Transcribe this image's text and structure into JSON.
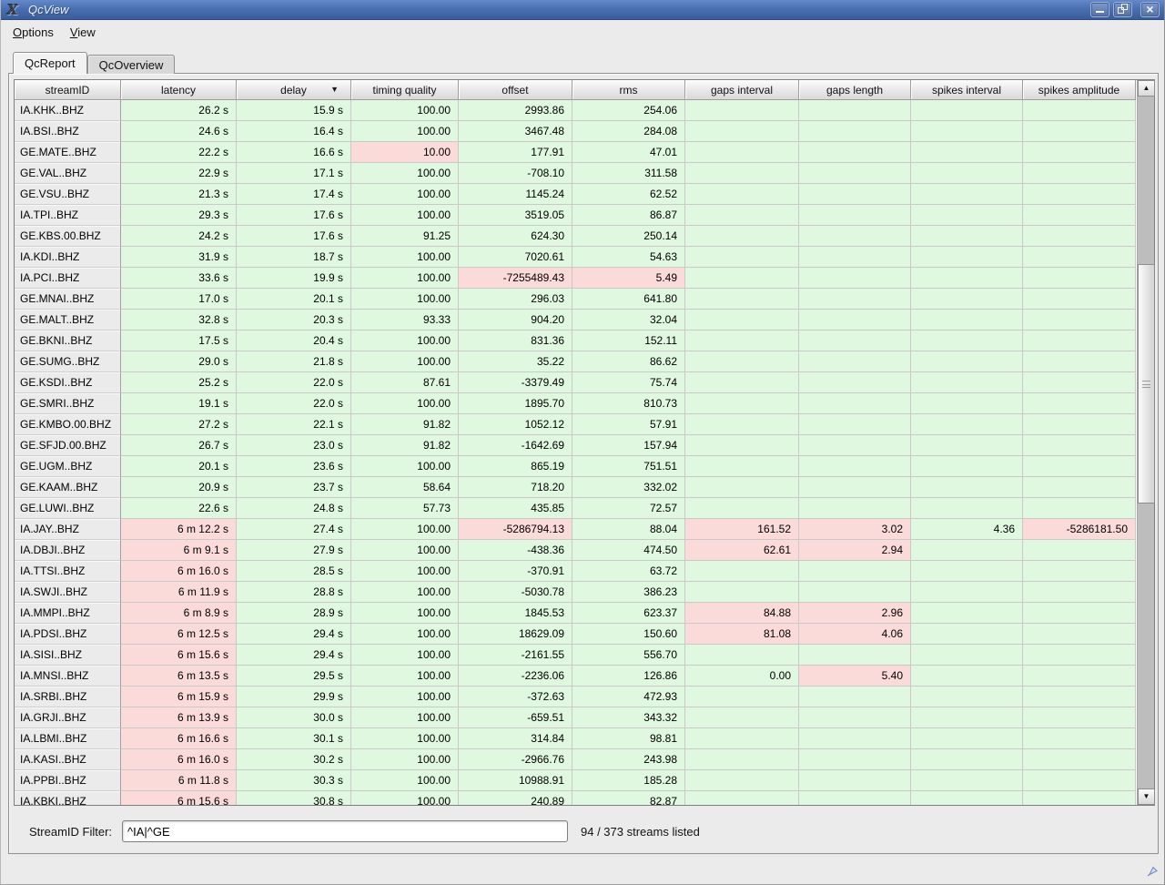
{
  "window": {
    "title": "QcView",
    "app_icon_glyph": "X",
    "controls": {
      "minimize": "minimize",
      "maximize": "maximize",
      "close_glyph": "×"
    }
  },
  "menubar": {
    "items": [
      {
        "label": "Options",
        "underline_index": 0
      },
      {
        "label": "View",
        "underline_index": 0
      }
    ]
  },
  "tabs": [
    {
      "label": "QcReport",
      "active": true
    },
    {
      "label": "QcOverview",
      "active": false
    }
  ],
  "table": {
    "columns": [
      "streamID",
      "latency",
      "delay",
      "timing quality",
      "offset",
      "rms",
      "gaps interval",
      "gaps length",
      "spikes interval",
      "spikes amplitude"
    ],
    "sort_column_index": 2,
    "sort_glyph": "▼",
    "scroll_up_glyph": "▲",
    "scroll_down_glyph": "▼",
    "rows": [
      {
        "cells": [
          "IA.KHK..BHZ",
          "26.2 s",
          "15.9 s",
          "100.00",
          "2993.86",
          "254.06",
          "",
          "",
          "",
          ""
        ],
        "alerts": []
      },
      {
        "cells": [
          "IA.BSI..BHZ",
          "24.6 s",
          "16.4 s",
          "100.00",
          "3467.48",
          "284.08",
          "",
          "",
          "",
          ""
        ],
        "alerts": []
      },
      {
        "cells": [
          "GE.MATE..BHZ",
          "22.2 s",
          "16.6 s",
          "10.00",
          "177.91",
          "47.01",
          "",
          "",
          "",
          ""
        ],
        "alerts": [
          3
        ]
      },
      {
        "cells": [
          "GE.VAL..BHZ",
          "22.9 s",
          "17.1 s",
          "100.00",
          "-708.10",
          "311.58",
          "",
          "",
          "",
          ""
        ],
        "alerts": []
      },
      {
        "cells": [
          "GE.VSU..BHZ",
          "21.3 s",
          "17.4 s",
          "100.00",
          "1145.24",
          "62.52",
          "",
          "",
          "",
          ""
        ],
        "alerts": []
      },
      {
        "cells": [
          "IA.TPI..BHZ",
          "29.3 s",
          "17.6 s",
          "100.00",
          "3519.05",
          "86.87",
          "",
          "",
          "",
          ""
        ],
        "alerts": []
      },
      {
        "cells": [
          "GE.KBS.00.BHZ",
          "24.2 s",
          "17.6 s",
          "91.25",
          "624.30",
          "250.14",
          "",
          "",
          "",
          ""
        ],
        "alerts": []
      },
      {
        "cells": [
          "IA.KDI..BHZ",
          "31.9 s",
          "18.7 s",
          "100.00",
          "7020.61",
          "54.63",
          "",
          "",
          "",
          ""
        ],
        "alerts": []
      },
      {
        "cells": [
          "IA.PCI..BHZ",
          "33.6 s",
          "19.9 s",
          "100.00",
          "-7255489.43",
          "5.49",
          "",
          "",
          "",
          ""
        ],
        "alerts": [
          4,
          5
        ]
      },
      {
        "cells": [
          "GE.MNAI..BHZ",
          "17.0 s",
          "20.1 s",
          "100.00",
          "296.03",
          "641.80",
          "",
          "",
          "",
          ""
        ],
        "alerts": []
      },
      {
        "cells": [
          "GE.MALT..BHZ",
          "32.8 s",
          "20.3 s",
          "93.33",
          "904.20",
          "32.04",
          "",
          "",
          "",
          ""
        ],
        "alerts": []
      },
      {
        "cells": [
          "GE.BKNI..BHZ",
          "17.5 s",
          "20.4 s",
          "100.00",
          "831.36",
          "152.11",
          "",
          "",
          "",
          ""
        ],
        "alerts": []
      },
      {
        "cells": [
          "GE.SUMG..BHZ",
          "29.0 s",
          "21.8 s",
          "100.00",
          "35.22",
          "86.62",
          "",
          "",
          "",
          ""
        ],
        "alerts": []
      },
      {
        "cells": [
          "GE.KSDI..BHZ",
          "25.2 s",
          "22.0 s",
          "87.61",
          "-3379.49",
          "75.74",
          "",
          "",
          "",
          ""
        ],
        "alerts": []
      },
      {
        "cells": [
          "GE.SMRI..BHZ",
          "19.1 s",
          "22.0 s",
          "100.00",
          "1895.70",
          "810.73",
          "",
          "",
          "",
          ""
        ],
        "alerts": []
      },
      {
        "cells": [
          "GE.KMBO.00.BHZ",
          "27.2 s",
          "22.1 s",
          "91.82",
          "1052.12",
          "57.91",
          "",
          "",
          "",
          ""
        ],
        "alerts": []
      },
      {
        "cells": [
          "GE.SFJD.00.BHZ",
          "26.7 s",
          "23.0 s",
          "91.82",
          "-1642.69",
          "157.94",
          "",
          "",
          "",
          ""
        ],
        "alerts": []
      },
      {
        "cells": [
          "GE.UGM..BHZ",
          "20.1 s",
          "23.6 s",
          "100.00",
          "865.19",
          "751.51",
          "",
          "",
          "",
          ""
        ],
        "alerts": []
      },
      {
        "cells": [
          "GE.KAAM..BHZ",
          "20.9 s",
          "23.7 s",
          "58.64",
          "718.20",
          "332.02",
          "",
          "",
          "",
          ""
        ],
        "alerts": []
      },
      {
        "cells": [
          "GE.LUWI..BHZ",
          "22.6 s",
          "24.8 s",
          "57.73",
          "435.85",
          "72.57",
          "",
          "",
          "",
          ""
        ],
        "alerts": []
      },
      {
        "cells": [
          "IA.JAY..BHZ",
          "6 m 12.2 s",
          "27.4 s",
          "100.00",
          "-5286794.13",
          "88.04",
          "161.52",
          "3.02",
          "4.36",
          "-5286181.50"
        ],
        "alerts": [
          1,
          4,
          6,
          7,
          9
        ]
      },
      {
        "cells": [
          "IA.DBJI..BHZ",
          "6 m 9.1 s",
          "27.9 s",
          "100.00",
          "-438.36",
          "474.50",
          "62.61",
          "2.94",
          "",
          ""
        ],
        "alerts": [
          1,
          6,
          7
        ]
      },
      {
        "cells": [
          "IA.TTSI..BHZ",
          "6 m 16.0 s",
          "28.5 s",
          "100.00",
          "-370.91",
          "63.72",
          "",
          "",
          "",
          ""
        ],
        "alerts": [
          1
        ]
      },
      {
        "cells": [
          "IA.SWJI..BHZ",
          "6 m 11.9 s",
          "28.8 s",
          "100.00",
          "-5030.78",
          "386.23",
          "",
          "",
          "",
          ""
        ],
        "alerts": [
          1
        ]
      },
      {
        "cells": [
          "IA.MMPI..BHZ",
          "6 m 8.9 s",
          "28.9 s",
          "100.00",
          "1845.53",
          "623.37",
          "84.88",
          "2.96",
          "",
          ""
        ],
        "alerts": [
          1,
          6,
          7
        ]
      },
      {
        "cells": [
          "IA.PDSI..BHZ",
          "6 m 12.5 s",
          "29.4 s",
          "100.00",
          "18629.09",
          "150.60",
          "81.08",
          "4.06",
          "",
          ""
        ],
        "alerts": [
          1,
          6,
          7
        ]
      },
      {
        "cells": [
          "IA.SISI..BHZ",
          "6 m 15.6 s",
          "29.4 s",
          "100.00",
          "-2161.55",
          "556.70",
          "",
          "",
          "",
          ""
        ],
        "alerts": [
          1
        ]
      },
      {
        "cells": [
          "IA.MNSI..BHZ",
          "6 m 13.5 s",
          "29.5 s",
          "100.00",
          "-2236.06",
          "126.86",
          "0.00",
          "5.40",
          "",
          ""
        ],
        "alerts": [
          1,
          7
        ]
      },
      {
        "cells": [
          "IA.SRBI..BHZ",
          "6 m 15.9 s",
          "29.9 s",
          "100.00",
          "-372.63",
          "472.93",
          "",
          "",
          "",
          ""
        ],
        "alerts": [
          1
        ]
      },
      {
        "cells": [
          "IA.GRJI..BHZ",
          "6 m 13.9 s",
          "30.0 s",
          "100.00",
          "-659.51",
          "343.32",
          "",
          "",
          "",
          ""
        ],
        "alerts": [
          1
        ]
      },
      {
        "cells": [
          "IA.LBMI..BHZ",
          "6 m 16.6 s",
          "30.1 s",
          "100.00",
          "314.84",
          "98.81",
          "",
          "",
          "",
          ""
        ],
        "alerts": [
          1
        ]
      },
      {
        "cells": [
          "IA.KASI..BHZ",
          "6 m 16.0 s",
          "30.2 s",
          "100.00",
          "-2966.76",
          "243.98",
          "",
          "",
          "",
          ""
        ],
        "alerts": [
          1
        ]
      },
      {
        "cells": [
          "IA.PPBI..BHZ",
          "6 m 11.8 s",
          "30.3 s",
          "100.00",
          "10988.91",
          "185.28",
          "",
          "",
          "",
          ""
        ],
        "alerts": [
          1
        ]
      },
      {
        "cells": [
          "IA.KBKI..BHZ",
          "6 m 15.6 s",
          "30.8 s",
          "100.00",
          "240.89",
          "82.87",
          "",
          "",
          "",
          ""
        ],
        "alerts": [
          1
        ]
      }
    ]
  },
  "footer": {
    "filter_label": "StreamID Filter:",
    "filter_value": "^IA|^GE",
    "status": "94 / 373 streams listed"
  },
  "colors": {
    "ok_cell": "#e0f7e0",
    "alert_cell": "#fbdada",
    "titlebar": "#4a70b0",
    "header_bg": "#e4e4e4"
  }
}
